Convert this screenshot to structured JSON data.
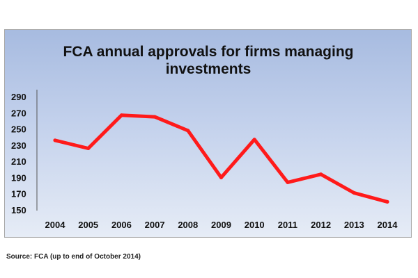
{
  "chart_data": {
    "type": "line",
    "title_lines": [
      "FCA annual approvals for firms managing",
      "investments"
    ],
    "x": [
      "2004",
      "2005",
      "2006",
      "2007",
      "2008",
      "2009",
      "2010",
      "2011",
      "2012",
      "2013",
      "2014"
    ],
    "series": [
      {
        "values": [
          236,
          226,
          267,
          265,
          248,
          190,
          237,
          184,
          194,
          171,
          160
        ],
        "color": "#ff1a1a"
      }
    ],
    "yticks": [
      150,
      170,
      190,
      210,
      230,
      250,
      270,
      290
    ],
    "ylim": [
      150,
      290
    ],
    "xlabel": "",
    "ylabel": "",
    "grid": false,
    "legend": "none"
  },
  "source_note": "Source: FCA (up to end of October 2014)"
}
